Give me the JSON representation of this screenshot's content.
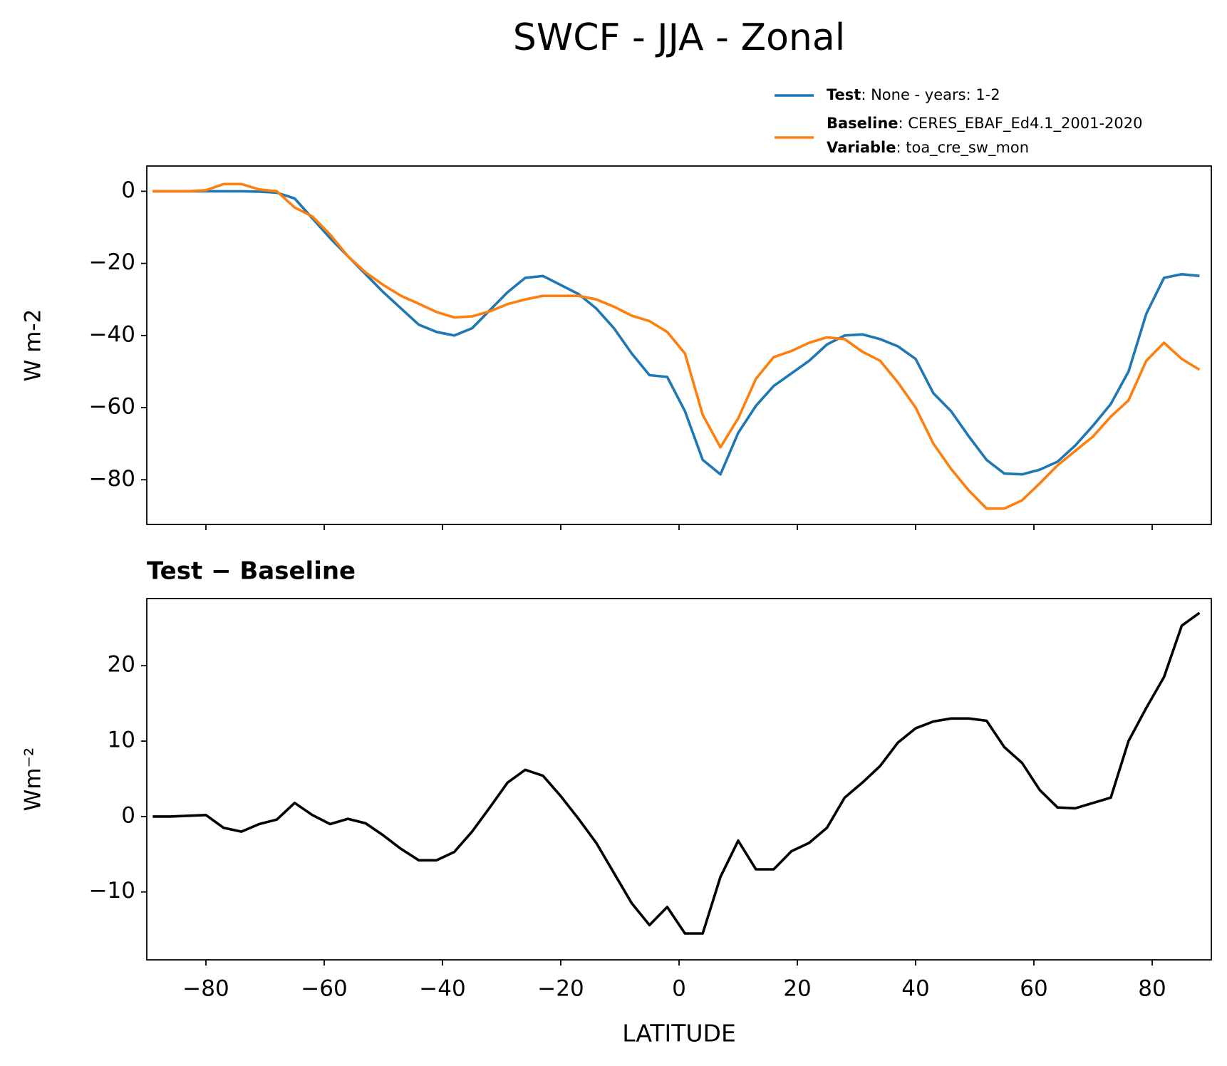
{
  "title": "SWCF - JJA - Zonal",
  "chart_data": [
    {
      "type": "line",
      "ylabel": "W m-2",
      "x": [
        -89,
        -86,
        -83,
        -80,
        -77,
        -74,
        -71,
        -68,
        -65,
        -62,
        -59,
        -56,
        -53,
        -50,
        -47,
        -44,
        -41,
        -38,
        -35,
        -32,
        -29,
        -26,
        -23,
        -20,
        -17,
        -14,
        -11,
        -8,
        -5,
        -2,
        1,
        4,
        7,
        10,
        13,
        16,
        19,
        22,
        25,
        28,
        31,
        34,
        37,
        40,
        43,
        46,
        49,
        52,
        55,
        58,
        61,
        64,
        67,
        70,
        73,
        76,
        79,
        82,
        85,
        88
      ],
      "series": [
        {
          "name": "Test",
          "info": ": None - years: 1-2",
          "color": "#1f77b4",
          "values": [
            0,
            0,
            0,
            0,
            0,
            0,
            -0.1,
            -0.4,
            -2,
            -7.5,
            -13,
            -18,
            -23,
            -28,
            -32.5,
            -37,
            -39,
            -40,
            -38,
            -33,
            -28,
            -24,
            -23.5,
            -26,
            -28.5,
            -32.5,
            -38,
            -45,
            -51,
            -51.5,
            -61,
            -74.5,
            -78.5,
            -67,
            -59.5,
            -54,
            -50.5,
            -47,
            -42.5,
            -40,
            -39.7,
            -41,
            -43,
            -46.5,
            -56,
            -61,
            -68,
            -74.5,
            -78.3,
            -78.5,
            -77.2,
            -75,
            -70.5,
            -65,
            -59,
            -50,
            -34,
            -24,
            -23,
            -23.5
          ]
        },
        {
          "name": "Baseline",
          "info": ": CERES_EBAF_Ed4.1_2001-2020",
          "color": "#ff7f0e",
          "values": [
            0,
            0,
            0,
            0.3,
            2,
            2,
            0.5,
            0,
            -4.5,
            -7,
            -12,
            -18,
            -22.5,
            -26,
            -29,
            -31.2,
            -33.5,
            -35,
            -34.7,
            -33.3,
            -31.3,
            -30,
            -29,
            -29,
            -29,
            -30,
            -32,
            -34.5,
            -36,
            -39,
            -45,
            -62,
            -71,
            -63,
            -52,
            -46,
            -44.3,
            -42,
            -40.5,
            -41,
            -44.5,
            -47,
            -53,
            -60,
            -70,
            -77,
            -83,
            -88,
            -88,
            -85.7,
            -81,
            -76,
            -72,
            -68,
            -62.5,
            -58,
            -47,
            -42,
            -46.5,
            -49.5
          ]
        }
      ],
      "legend_extra": {
        "name": "Variable",
        "info": ": toa_cre_sw_mon"
      },
      "xlim": [
        -90,
        90
      ],
      "xticks": [
        -80,
        -60,
        -40,
        -20,
        0,
        20,
        40,
        60,
        80
      ],
      "ylim": [
        -92.4,
        7
      ],
      "yticks": [
        {
          "value": -80,
          "label": "−80"
        },
        {
          "value": -60,
          "label": "−60"
        },
        {
          "value": -40,
          "label": "−40"
        },
        {
          "value": -20,
          "label": "−20"
        },
        0
      ]
    },
    {
      "type": "line",
      "title": "Test − Baseline",
      "xlabel": "LATITUDE",
      "ylabel": "Wm⁻²",
      "x": [
        -89,
        -86,
        -83,
        -80,
        -77,
        -74,
        -71,
        -68,
        -65,
        -62,
        -59,
        -56,
        -53,
        -50,
        -47,
        -44,
        -41,
        -38,
        -35,
        -32,
        -29,
        -26,
        -23,
        -20,
        -17,
        -14,
        -11,
        -8,
        -5,
        -2,
        1,
        4,
        7,
        10,
        13,
        16,
        19,
        22,
        25,
        28,
        31,
        34,
        37,
        40,
        43,
        46,
        49,
        52,
        55,
        58,
        61,
        64,
        67,
        70,
        73,
        76,
        79,
        82,
        85,
        88
      ],
      "series": [
        {
          "color": "#000000",
          "values": [
            0,
            0,
            0.1,
            0.2,
            -1.5,
            -2,
            -1,
            -0.4,
            1.8,
            0.2,
            -1,
            -0.3,
            -0.9,
            -2.5,
            -4.3,
            -5.8,
            -5.8,
            -4.7,
            -2,
            1.2,
            4.5,
            6.2,
            5.4,
            2.7,
            -0.3,
            -3.5,
            -7.5,
            -11.5,
            -14.4,
            -12,
            -15.5,
            -15.5,
            -8,
            -3.2,
            -7,
            -7,
            -4.6,
            -3.5,
            -1.5,
            2.5,
            4.5,
            6.7,
            9.8,
            11.7,
            12.6,
            13,
            13,
            12.7,
            9.2,
            7.1,
            3.5,
            1.2,
            1.1,
            1.8,
            2.5,
            10,
            14.4,
            18.5,
            25.3,
            27
          ]
        }
      ],
      "xlim": [
        -90,
        90
      ],
      "xticks": [
        {
          "value": -80,
          "label": "−80"
        },
        {
          "value": -60,
          "label": "−60"
        },
        {
          "value": -40,
          "label": "−40"
        },
        {
          "value": -20,
          "label": "−20"
        },
        0,
        20,
        40,
        60,
        80
      ],
      "ylim": [
        -19,
        28.9
      ],
      "yticks": [
        {
          "value": -10,
          "label": "−10"
        },
        0,
        10,
        20
      ]
    }
  ]
}
